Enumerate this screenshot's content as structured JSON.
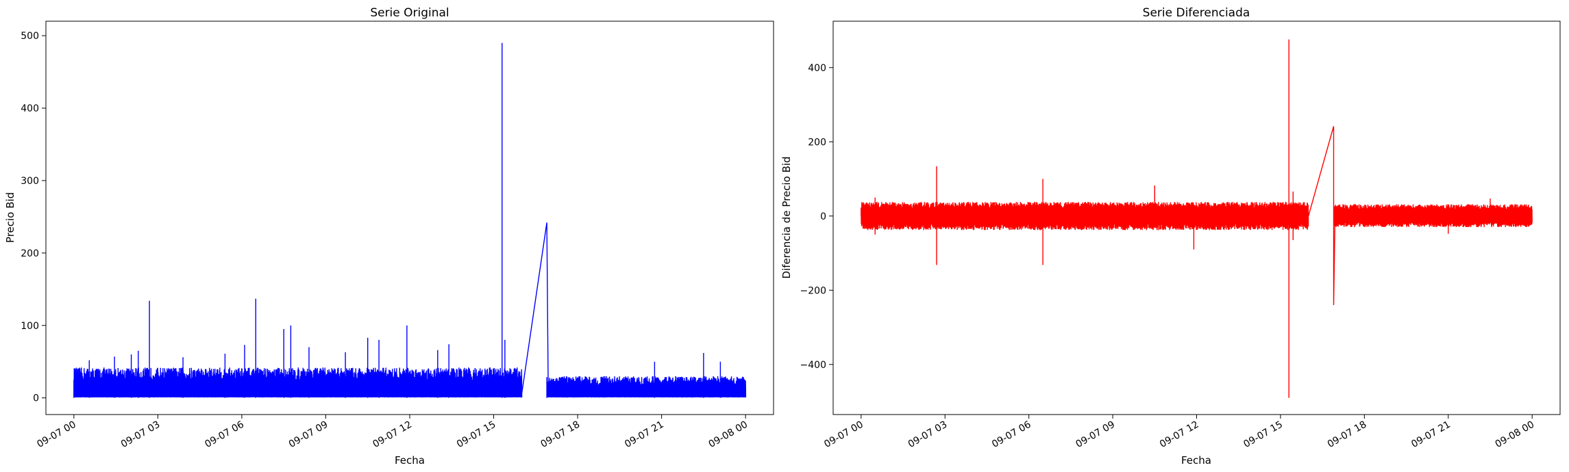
{
  "chart_data": [
    {
      "type": "line",
      "title": "Serie Original",
      "xlabel": "Fecha",
      "ylabel": "Precio Bid",
      "color": "#0000ff",
      "xticks": [
        "09-07 00",
        "09-07 03",
        "09-07 06",
        "09-07 09",
        "09-07 12",
        "09-07 15",
        "09-07 18",
        "09-07 21",
        "09-08 00"
      ],
      "xlim_hours": [
        -1.0,
        25.0
      ],
      "ylim": [
        -23,
        520
      ],
      "yticks": [
        0,
        100,
        200,
        300,
        400,
        500
      ],
      "ytick_labels": [
        "0",
        "100",
        "200",
        "300",
        "400",
        "500"
      ],
      "grid": false,
      "legend": "none",
      "segments": [
        {
          "start_hour": 0.0,
          "end_hour": 16.0,
          "low": 1,
          "high": 42,
          "spikes": [
            [
              0.55,
              52
            ],
            [
              1.45,
              57
            ],
            [
              2.05,
              60
            ],
            [
              2.3,
              65
            ],
            [
              2.7,
              134
            ],
            [
              3.9,
              56
            ],
            [
              5.4,
              61
            ],
            [
              6.1,
              73
            ],
            [
              6.5,
              137
            ],
            [
              7.5,
              95
            ],
            [
              7.75,
              100
            ],
            [
              8.4,
              70
            ],
            [
              9.7,
              63
            ],
            [
              10.5,
              83
            ],
            [
              10.9,
              80
            ],
            [
              11.9,
              100
            ],
            [
              13.0,
              66
            ],
            [
              13.4,
              74
            ],
            [
              15.3,
              490
            ],
            [
              15.4,
              80
            ]
          ]
        },
        {
          "start_hour": 16.9,
          "end_hour": 24.0,
          "low": 1,
          "high": 30,
          "spikes": [
            [
              20.75,
              50
            ],
            [
              22.5,
              62
            ],
            [
              23.1,
              50
            ]
          ]
        }
      ],
      "gap_line": [
        [
          16.0,
          5
        ],
        [
          16.9,
          242
        ],
        [
          16.95,
          5
        ]
      ]
    },
    {
      "type": "line",
      "title": "Serie Diferenciada",
      "xlabel": "Fecha",
      "ylabel": "Diferencia de Precio Bid",
      "color": "#ff0000",
      "xticks": [
        "09-07 00",
        "09-07 03",
        "09-07 06",
        "09-07 09",
        "09-07 12",
        "09-07 15",
        "09-07 18",
        "09-07 21",
        "09-08 00"
      ],
      "xlim_hours": [
        -1.0,
        25.0
      ],
      "ylim": [
        -535,
        525
      ],
      "yticks": [
        -400,
        -200,
        0,
        200,
        400
      ],
      "ytick_labels": [
        "−400",
        "−200",
        "0",
        "200",
        "400"
      ],
      "grid": false,
      "legend": "none",
      "segments": [
        {
          "start_hour": 0.0,
          "end_hour": 16.0,
          "low": -38,
          "high": 38,
          "spikes": [
            [
              0.5,
              50
            ],
            [
              0.5,
              -50
            ],
            [
              2.7,
              134
            ],
            [
              2.7,
              -132
            ],
            [
              6.5,
              100
            ],
            [
              6.5,
              -132
            ],
            [
              10.5,
              82
            ],
            [
              11.9,
              -90
            ],
            [
              15.3,
              476
            ],
            [
              15.3,
              -490
            ],
            [
              15.45,
              66
            ],
            [
              15.45,
              -65
            ]
          ]
        },
        {
          "start_hour": 16.9,
          "end_hour": 24.0,
          "low": -30,
          "high": 32,
          "spikes": [
            [
              22.5,
              47
            ],
            [
              21.0,
              -48
            ]
          ]
        }
      ],
      "gap_line": [
        [
          16.0,
          0
        ],
        [
          16.9,
          242
        ],
        [
          16.9,
          -240
        ],
        [
          16.95,
          0
        ]
      ]
    }
  ]
}
